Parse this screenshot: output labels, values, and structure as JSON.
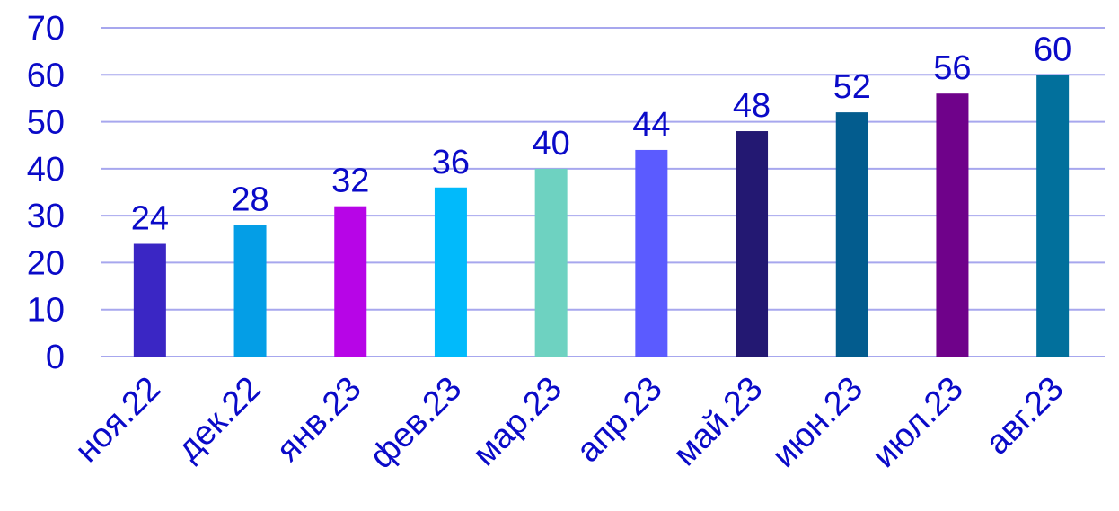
{
  "chart_data": {
    "type": "bar",
    "title": "",
    "xlabel": "",
    "ylabel": "",
    "categories": [
      "ноя.22",
      "дек.22",
      "янв.23",
      "фев.23",
      "мар.23",
      "апр.23",
      "май.23",
      "июн.23",
      "июл.23",
      "авг.23"
    ],
    "values": [
      24,
      28,
      32,
      36,
      40,
      44,
      48,
      52,
      56,
      60
    ],
    "data_labels": [
      "24",
      "28",
      "32",
      "36",
      "40",
      "44",
      "48",
      "52",
      "56",
      "60"
    ],
    "bar_colors": [
      "#3A26C4",
      "#049EE6",
      "#B705E7",
      "#01BAFB",
      "#6ED2C1",
      "#5B5BFF",
      "#231872",
      "#035C8E",
      "#6F028A",
      "#02709C"
    ],
    "ylim": [
      0,
      70
    ],
    "yticks": [
      0,
      10,
      20,
      30,
      40,
      50,
      60,
      70
    ],
    "ytick_labels": [
      "0",
      "10",
      "20",
      "30",
      "40",
      "50",
      "60",
      "70"
    ],
    "grid": true,
    "legend": "none",
    "text_color": "#0A0AC8",
    "grid_color": "#A7A7EE"
  }
}
